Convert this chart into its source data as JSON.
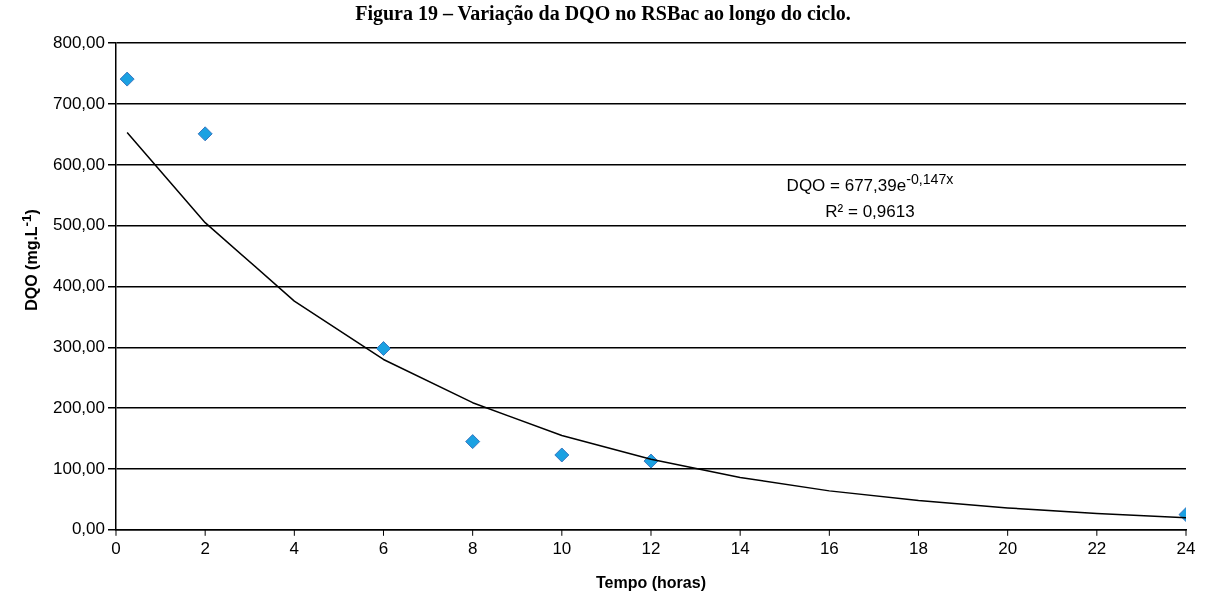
{
  "chart_data": {
    "type": "scatter",
    "title": "Figura 19 – Variação da DQO no RSBac ao longo do ciclo.",
    "xlabel": "Tempo (horas)",
    "ylabel": "DQO (mg.L$^{-1}$)",
    "series": [
      {
        "type": "scatter",
        "color": "#1ba1e2",
        "marker": "diamond",
        "x": [
          0.25,
          2,
          6,
          8,
          10,
          12,
          24
        ],
        "values": [
          741,
          651,
          298,
          145,
          123,
          113,
          25
        ]
      },
      {
        "type": "line",
        "color": "#000000",
        "marker": "none",
        "x": [
          0.25,
          2,
          4,
          6,
          8,
          10,
          12,
          14,
          16,
          18,
          20,
          22,
          24
        ],
        "values": [
          653,
          505,
          376,
          280,
          209,
          155,
          116,
          86,
          64,
          48,
          36,
          27,
          20
        ]
      }
    ],
    "xlim": [
      0,
      24
    ],
    "xticks": [
      0,
      2,
      4,
      6,
      8,
      10,
      12,
      14,
      16,
      18,
      20,
      22,
      24
    ],
    "ylim": [
      0,
      800
    ],
    "yticks": [
      {
        "value": 0,
        "label": "0,00"
      },
      {
        "value": 100,
        "label": "100,00"
      },
      {
        "value": 200,
        "label": "200,00"
      },
      {
        "value": 300,
        "label": "300,00"
      },
      {
        "value": 400,
        "label": "400,00"
      },
      {
        "value": 500,
        "label": "500,00"
      },
      {
        "value": 600,
        "label": "600,00"
      },
      {
        "value": 700,
        "label": "700,00"
      },
      {
        "value": 800,
        "label": "800,00"
      }
    ],
    "grid": "y",
    "legend": false,
    "annotations": [
      "DQO = 677,39e$^{-0,147x}$",
      "R² = 0,9613"
    ]
  }
}
